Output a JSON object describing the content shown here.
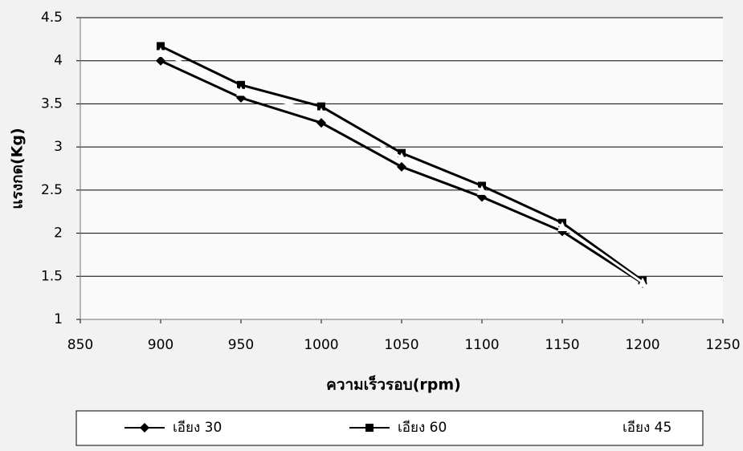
{
  "chart_data": {
    "type": "line",
    "y_label": "แรงกด(Kg)",
    "x_label": "ความเร็วรอบ(rpm)",
    "x": [
      900,
      950,
      1000,
      1050,
      1100,
      1150,
      1200
    ],
    "series": [
      {
        "name": "เอียง 30",
        "color": "#000000",
        "marker": "diamond",
        "values": [
          4.0,
          3.57,
          3.28,
          2.77,
          2.42,
          2.02,
          1.42
        ]
      },
      {
        "name": "เอียง 60",
        "color": "#000000",
        "marker": "square",
        "values": [
          4.17,
          3.72,
          3.47,
          2.93,
          2.55,
          2.12,
          1.45
        ]
      },
      {
        "name": "เอียง 45",
        "color": "#ffffff",
        "marker": "triangle",
        "values": [
          4.1,
          3.65,
          3.4,
          2.88,
          2.5,
          2.08,
          1.43
        ]
      }
    ],
    "xlim": [
      850,
      1250
    ],
    "xticks": [
      850,
      900,
      950,
      1000,
      1050,
      1100,
      1150,
      1200,
      1250
    ],
    "ylim": [
      1,
      4.5
    ],
    "yticks": [
      1,
      1.5,
      2,
      2.5,
      3,
      3.5,
      4,
      4.5
    ],
    "grid": true,
    "legend": "bottom"
  }
}
